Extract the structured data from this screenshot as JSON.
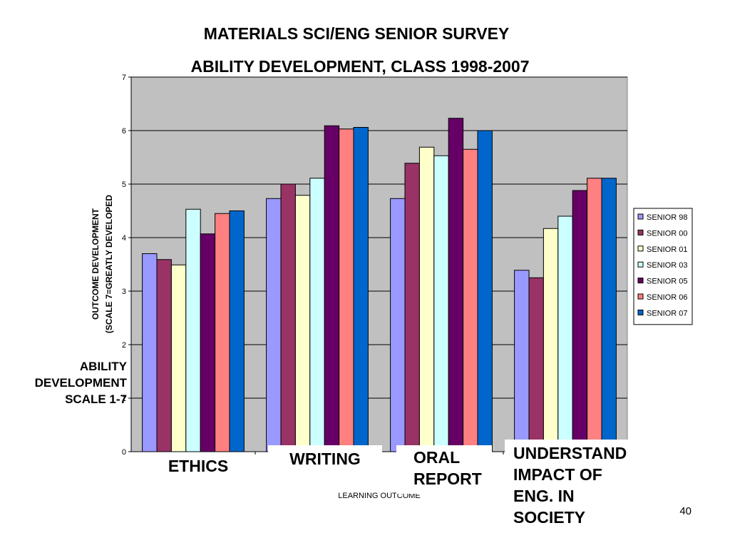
{
  "slide": {
    "title_line1": "MATERIALS SCI/ENG SENIOR SURVEY",
    "title_line2": "ABILITY DEVELOPMENT, CLASS 1998-2007",
    "scale_note_line1": "ABILITY",
    "scale_note_line2": "DEVELOPMENT",
    "scale_note_line3": "SCALE 1-7",
    "overlay_labels": {
      "ethics": "ETHICS",
      "writing": "WRITING",
      "oral_line1": "ORAL",
      "oral_line2": "REPORT",
      "impact_line1": "UNDERSTAND",
      "impact_line2": "IMPACT OF",
      "impact_line3": "ENG. IN",
      "impact_line4": "SOCIETY"
    },
    "page_number": "40"
  },
  "chart_data": {
    "type": "bar",
    "title": "",
    "xlabel": "LEARNING OUTCOME",
    "ylabel_line1": "OUTCOME DEVELOPMENT",
    "ylabel_line2": "(SCALE 7=GREATLY DEVELOPED",
    "ylim": [
      0,
      7
    ],
    "yticks": [
      0,
      1,
      2,
      3,
      4,
      5,
      6,
      7
    ],
    "grid": true,
    "legend_position": "right",
    "categories": [
      "ETHICS",
      "WRITING",
      "ORAL REPORT",
      "UNDERSTAND IMPACT OF ENG. IN SOCIETY"
    ],
    "series": [
      {
        "name": "SENIOR 98",
        "color": "#9999ff",
        "values": [
          3.7,
          4.73,
          4.73,
          3.39
        ]
      },
      {
        "name": "SENIOR 00",
        "color": "#993366",
        "values": [
          3.59,
          5.0,
          5.39,
          3.25
        ]
      },
      {
        "name": "SENIOR 01",
        "color": "#ffffcc",
        "values": [
          3.49,
          4.79,
          5.69,
          4.17
        ]
      },
      {
        "name": "SENIOR 03",
        "color": "#ccffff",
        "values": [
          4.53,
          5.11,
          5.53,
          4.4
        ]
      },
      {
        "name": "SENIOR 05",
        "color": "#660066",
        "values": [
          4.07,
          6.09,
          6.23,
          4.88
        ]
      },
      {
        "name": "SENIOR 06",
        "color": "#ff8080",
        "values": [
          4.45,
          6.03,
          5.65,
          5.11
        ]
      },
      {
        "name": "SENIOR 07",
        "color": "#0066cc",
        "values": [
          4.5,
          6.06,
          6.0,
          5.11
        ]
      }
    ],
    "colors": {
      "plot_background": "#c0c0c0",
      "gridline": "#000000",
      "bar_outline": "#000000"
    }
  }
}
